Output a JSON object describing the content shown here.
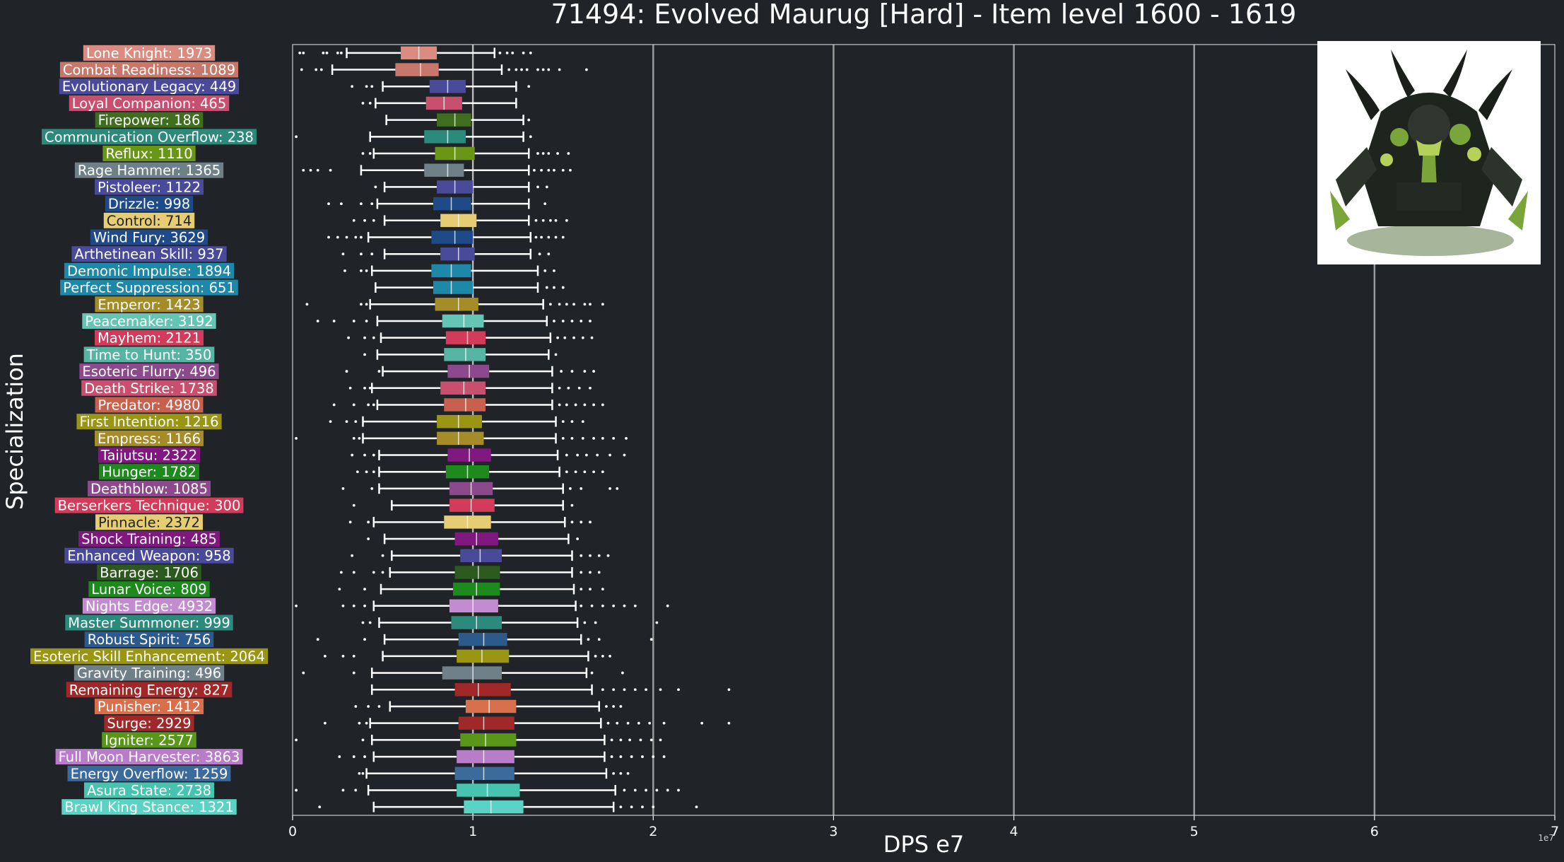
{
  "chart_data": {
    "type": "boxplot",
    "orientation": "horizontal",
    "title": "71494: Evolved Maurug [Hard] - Item level 1600 - 1619",
    "xlabel": "DPS e7",
    "ylabel": "Specialization",
    "xlim": [
      0,
      7
    ],
    "x_ticks": [
      "0",
      "1",
      "2",
      "3",
      "4",
      "5",
      "6",
      "7"
    ],
    "x_exponent_label": "1e7",
    "grid": "vertical",
    "median_reference_x": 1.0,
    "categories": [
      {
        "label": "Lone Knight: 1973",
        "color": "#d98c7f",
        "wl": 0.3,
        "q1": 0.6,
        "med": 0.7,
        "q3": 0.8,
        "wh": 1.12,
        "fliers": [
          0.04,
          0.06,
          0.17,
          0.19,
          0.25,
          0.27,
          1.15,
          1.19,
          1.22,
          1.28,
          1.32
        ]
      },
      {
        "label": "Combat Readiness: 1089",
        "color": "#c8786a",
        "wl": 0.22,
        "q1": 0.57,
        "med": 0.71,
        "q3": 0.81,
        "wh": 1.16,
        "fliers": [
          0.05,
          0.13,
          0.16,
          1.2,
          1.24,
          1.27,
          1.3,
          1.36,
          1.39,
          1.42,
          1.48,
          1.63
        ]
      },
      {
        "label": "Evolutionary Legacy: 449",
        "color": "#4a4a9a",
        "wl": 0.5,
        "q1": 0.76,
        "med": 0.86,
        "q3": 0.96,
        "wh": 1.24,
        "fliers": [
          0.33,
          0.41,
          0.44,
          1.31
        ]
      },
      {
        "label": "Loyal Companion: 465",
        "color": "#c8506e",
        "wl": 0.46,
        "q1": 0.74,
        "med": 0.84,
        "q3": 0.94,
        "wh": 1.24,
        "fliers": [
          0.39,
          0.43
        ]
      },
      {
        "label": "Firepower: 186",
        "color": "#3e6e1e",
        "wl": 0.52,
        "q1": 0.8,
        "med": 0.9,
        "q3": 0.99,
        "wh": 1.28,
        "fliers": [
          1.31
        ]
      },
      {
        "label": "Communication Overflow: 238",
        "color": "#2c8a7c",
        "wl": 0.43,
        "q1": 0.73,
        "med": 0.86,
        "q3": 0.96,
        "wh": 1.28,
        "fliers": [
          0.02,
          1.32
        ]
      },
      {
        "label": "Reflux: 1110",
        "color": "#6a9618",
        "wl": 0.45,
        "q1": 0.79,
        "med": 0.9,
        "q3": 1.01,
        "wh": 1.31,
        "fliers": [
          0.39,
          0.43,
          1.36,
          1.39,
          1.42,
          1.47,
          1.53
        ]
      },
      {
        "label": "Rage Hammer: 1365",
        "color": "#6f8088",
        "wl": 0.38,
        "q1": 0.73,
        "med": 0.86,
        "q3": 0.95,
        "wh": 1.31,
        "fliers": [
          0.06,
          0.1,
          0.14,
          0.21,
          1.34,
          1.38,
          1.42,
          1.45,
          1.5,
          1.54
        ]
      },
      {
        "label": "Pistoleer: 1122",
        "color": "#4a4a9a",
        "wl": 0.51,
        "q1": 0.8,
        "med": 0.9,
        "q3": 1.0,
        "wh": 1.31,
        "fliers": [
          0.46,
          1.36,
          1.41
        ]
      },
      {
        "label": "Drizzle: 998",
        "color": "#1e4a8a",
        "wl": 0.47,
        "q1": 0.78,
        "med": 0.88,
        "q3": 0.99,
        "wh": 1.31,
        "fliers": [
          0.2,
          0.27,
          0.38,
          0.44,
          1.4
        ]
      },
      {
        "label": "Control: 714",
        "color": "#e6cc72",
        "wl": 0.51,
        "q1": 0.82,
        "med": 0.92,
        "q3": 1.02,
        "wh": 1.31,
        "fliers": [
          0.34,
          0.4,
          0.45,
          1.35,
          1.39,
          1.43,
          1.46,
          1.52
        ]
      },
      {
        "label": "Wind Fury: 3629",
        "color": "#1e4a8a",
        "wl": 0.42,
        "q1": 0.77,
        "med": 0.9,
        "q3": 1.0,
        "wh": 1.32,
        "fliers": [
          0.2,
          0.25,
          0.3,
          0.35,
          0.38,
          1.35,
          1.38,
          1.42,
          1.46,
          1.5
        ]
      },
      {
        "label": "Arthetinean Skill: 937",
        "color": "#4a4a9a",
        "wl": 0.51,
        "q1": 0.82,
        "med": 0.92,
        "q3": 1.01,
        "wh": 1.32,
        "fliers": [
          0.28,
          0.38,
          0.44,
          1.37,
          1.42
        ]
      },
      {
        "label": "Demonic Impulse: 1894",
        "color": "#1e88a8",
        "wl": 0.44,
        "q1": 0.77,
        "med": 0.88,
        "q3": 0.99,
        "wh": 1.36,
        "fliers": [
          0.29,
          0.38,
          0.41,
          1.4,
          1.45
        ]
      },
      {
        "label": "Perfect Suppression: 651",
        "color": "#1e88a8",
        "wl": 0.46,
        "q1": 0.78,
        "med": 0.88,
        "q3": 1.0,
        "wh": 1.36,
        "fliers": [
          1.41,
          1.45,
          1.5
        ]
      },
      {
        "label": "Emperor: 1423",
        "color": "#a48c28",
        "wl": 0.43,
        "q1": 0.79,
        "med": 0.92,
        "q3": 1.03,
        "wh": 1.39,
        "fliers": [
          0.08,
          0.38,
          0.41,
          1.43,
          1.48,
          1.52,
          1.56,
          1.62,
          1.65,
          1.72
        ]
      },
      {
        "label": "Peacemaker: 3192",
        "color": "#66c4b4",
        "wl": 0.47,
        "q1": 0.83,
        "med": 0.95,
        "q3": 1.06,
        "wh": 1.41,
        "fliers": [
          0.14,
          0.23,
          0.34,
          0.41,
          1.45,
          1.5,
          1.55,
          1.6,
          1.65
        ]
      },
      {
        "label": "Mayhem: 2121",
        "color": "#d23c5a",
        "wl": 0.49,
        "q1": 0.85,
        "med": 0.97,
        "q3": 1.07,
        "wh": 1.43,
        "fliers": [
          0.31,
          0.4,
          0.45,
          1.47,
          1.51,
          1.56,
          1.61,
          1.66
        ]
      },
      {
        "label": "Time to Hunt: 350",
        "color": "#56b4a4",
        "wl": 0.47,
        "q1": 0.84,
        "med": 0.96,
        "q3": 1.07,
        "wh": 1.42,
        "fliers": [
          0.4,
          1.46
        ]
      },
      {
        "label": "Esoteric Flurry: 496",
        "color": "#8c4a8c",
        "wl": 0.5,
        "q1": 0.86,
        "med": 0.98,
        "q3": 1.09,
        "wh": 1.44,
        "fliers": [
          0.3,
          0.48,
          1.49,
          1.55,
          1.62,
          1.67
        ]
      },
      {
        "label": "Death Strike: 1738",
        "color": "#c8506e",
        "wl": 0.44,
        "q1": 0.82,
        "med": 0.95,
        "q3": 1.07,
        "wh": 1.44,
        "fliers": [
          0.32,
          0.4,
          0.43,
          1.48,
          1.53,
          1.59,
          1.65
        ]
      },
      {
        "label": "Predator: 4980",
        "color": "#c8604e",
        "wl": 0.47,
        "q1": 0.84,
        "med": 0.96,
        "q3": 1.07,
        "wh": 1.44,
        "fliers": [
          0.23,
          0.34,
          0.42,
          0.45,
          1.48,
          1.52,
          1.57,
          1.62,
          1.67,
          1.72
        ]
      },
      {
        "label": "First Intention: 1216",
        "color": "#9a9614",
        "wl": 0.39,
        "q1": 0.8,
        "med": 0.92,
        "q3": 1.05,
        "wh": 1.46,
        "fliers": [
          0.21,
          0.3,
          0.35,
          1.5,
          1.55,
          1.61
        ]
      },
      {
        "label": "Empress: 1166",
        "color": "#a48c28",
        "wl": 0.39,
        "q1": 0.8,
        "med": 0.92,
        "q3": 1.06,
        "wh": 1.46,
        "fliers": [
          0.02,
          0.34,
          0.37,
          1.5,
          1.55,
          1.61,
          1.67,
          1.72,
          1.78,
          1.85
        ]
      },
      {
        "label": "Taijutsu: 2322",
        "color": "#801880",
        "wl": 0.48,
        "q1": 0.86,
        "med": 0.98,
        "q3": 1.1,
        "wh": 1.47,
        "fliers": [
          0.33,
          0.4,
          0.45,
          1.52,
          1.58,
          1.63,
          1.69,
          1.76,
          1.84
        ]
      },
      {
        "label": "Hunger: 1782",
        "color": "#1e8a1e",
        "wl": 0.48,
        "q1": 0.85,
        "med": 0.97,
        "q3": 1.09,
        "wh": 1.48,
        "fliers": [
          0.36,
          0.41,
          0.45,
          1.52,
          1.57,
          1.62,
          1.67,
          1.72
        ]
      },
      {
        "label": "Deathblow: 1085",
        "color": "#8c4a8c",
        "wl": 0.48,
        "q1": 0.87,
        "med": 0.99,
        "q3": 1.11,
        "wh": 1.5,
        "fliers": [
          0.28,
          0.44,
          1.54,
          1.6,
          1.76,
          1.8
        ]
      },
      {
        "label": "Berserkers Technique: 300",
        "color": "#d23c5a",
        "wl": 0.55,
        "q1": 0.87,
        "med": 0.99,
        "q3": 1.12,
        "wh": 1.5,
        "fliers": [
          0.34,
          1.55
        ]
      },
      {
        "label": "Pinnacle: 2372",
        "color": "#e6cc72",
        "wl": 0.45,
        "q1": 0.84,
        "med": 0.97,
        "q3": 1.1,
        "wh": 1.51,
        "fliers": [
          0.32,
          0.42,
          1.55,
          1.6,
          1.65
        ]
      },
      {
        "label": "Shock Training: 485",
        "color": "#801880",
        "wl": 0.51,
        "q1": 0.9,
        "med": 1.02,
        "q3": 1.14,
        "wh": 1.53,
        "fliers": [
          0.42,
          1.58
        ]
      },
      {
        "label": "Enhanced Weapon: 958",
        "color": "#4a4a9a",
        "wl": 0.55,
        "q1": 0.93,
        "med": 1.04,
        "q3": 1.16,
        "wh": 1.55,
        "fliers": [
          0.33,
          0.5,
          1.6,
          1.65,
          1.7,
          1.75
        ]
      },
      {
        "label": "Barrage: 1706",
        "color": "#2c5a1e",
        "wl": 0.54,
        "q1": 0.9,
        "med": 1.03,
        "q3": 1.15,
        "wh": 1.55,
        "fliers": [
          0.27,
          0.34,
          0.45,
          0.5,
          1.6,
          1.65,
          1.7
        ]
      },
      {
        "label": "Lunar Voice: 809",
        "color": "#1e8a1e",
        "wl": 0.49,
        "q1": 0.89,
        "med": 1.02,
        "q3": 1.15,
        "wh": 1.56,
        "fliers": [
          0.26,
          0.4,
          1.6,
          1.65,
          1.72
        ]
      },
      {
        "label": "Nights Edge: 4932",
        "color": "#c48cd0",
        "wl": 0.45,
        "q1": 0.87,
        "med": 1.0,
        "q3": 1.14,
        "wh": 1.57,
        "fliers": [
          0.02,
          0.28,
          0.34,
          0.4,
          1.6,
          1.66,
          1.72,
          1.78,
          1.84,
          1.9,
          2.08
        ]
      },
      {
        "label": "Master Summoner: 999",
        "color": "#2c8a7c",
        "wl": 0.48,
        "q1": 0.88,
        "med": 1.02,
        "q3": 1.16,
        "wh": 1.58,
        "fliers": [
          0.39,
          0.43,
          1.62,
          1.68,
          2.02
        ]
      },
      {
        "label": "Robust Spirit: 756",
        "color": "#2c5a8c",
        "wl": 0.51,
        "q1": 0.92,
        "med": 1.06,
        "q3": 1.19,
        "wh": 1.6,
        "fliers": [
          0.14,
          0.4,
          1.64,
          1.7,
          1.99
        ]
      },
      {
        "label": "Esoteric Skill Enhancement: 2064",
        "color": "#9a9614",
        "wl": 0.5,
        "q1": 0.91,
        "med": 1.05,
        "q3": 1.2,
        "wh": 1.64,
        "fliers": [
          0.18,
          0.28,
          0.34,
          1.68,
          1.72,
          1.76
        ]
      },
      {
        "label": "Gravity Training: 496",
        "color": "#6f8088",
        "wl": 0.44,
        "q1": 0.83,
        "med": 1.0,
        "q3": 1.16,
        "wh": 1.63,
        "fliers": [
          0.06,
          0.34,
          1.66,
          1.83
        ]
      },
      {
        "label": "Remaining Energy: 827",
        "color": "#a02828",
        "wl": 0.44,
        "q1": 0.9,
        "med": 1.03,
        "q3": 1.21,
        "wh": 1.66,
        "fliers": [
          1.72,
          1.78,
          1.84,
          1.9,
          1.96,
          2.04,
          2.14,
          2.42
        ]
      },
      {
        "label": "Punisher: 1412",
        "color": "#d8704e",
        "wl": 0.54,
        "q1": 0.96,
        "med": 1.09,
        "q3": 1.24,
        "wh": 1.7,
        "fliers": [
          0.35,
          0.42,
          0.48,
          1.74,
          1.78,
          1.82
        ]
      },
      {
        "label": "Surge: 2929",
        "color": "#a02828",
        "wl": 0.43,
        "q1": 0.92,
        "med": 1.06,
        "q3": 1.23,
        "wh": 1.71,
        "fliers": [
          0.18,
          0.37,
          0.41,
          1.75,
          1.8,
          1.86,
          1.92,
          1.98,
          2.06,
          2.27,
          2.42
        ]
      },
      {
        "label": "Igniter: 2577",
        "color": "#5a9618",
        "wl": 0.44,
        "q1": 0.93,
        "med": 1.07,
        "q3": 1.24,
        "wh": 1.73,
        "fliers": [
          0.02,
          0.39,
          1.77,
          1.82,
          1.87,
          1.93,
          1.99,
          2.04
        ]
      },
      {
        "label": "Full Moon Harvester: 3863",
        "color": "#b87cc8",
        "wl": 0.45,
        "q1": 0.91,
        "med": 1.06,
        "q3": 1.23,
        "wh": 1.73,
        "fliers": [
          0.26,
          0.34,
          0.4,
          1.77,
          1.82,
          1.88,
          1.94,
          2.0,
          2.06
        ]
      },
      {
        "label": "Energy Overflow: 1259",
        "color": "#3c6a9a",
        "wl": 0.41,
        "q1": 0.9,
        "med": 1.06,
        "q3": 1.23,
        "wh": 1.74,
        "fliers": [
          0.37,
          0.39,
          1.78,
          1.82,
          1.86
        ]
      },
      {
        "label": "Asura State: 2738",
        "color": "#46c4b0",
        "wl": 0.42,
        "q1": 0.91,
        "med": 1.08,
        "q3": 1.26,
        "wh": 1.79,
        "fliers": [
          0.02,
          0.28,
          0.35,
          1.84,
          1.9,
          1.96,
          2.02,
          2.08,
          2.14
        ]
      },
      {
        "label": "Brawl King Stance: 1321",
        "color": "#5ad2c4",
        "wl": 0.45,
        "q1": 0.95,
        "med": 1.1,
        "q3": 1.28,
        "wh": 1.78,
        "fliers": [
          0.15,
          1.82,
          1.88,
          1.94,
          2.0,
          2.24
        ]
      }
    ]
  },
  "portrait": {
    "icon": "boss-portrait-icon",
    "colors": {
      "armor": "#1a1f1a",
      "slime": "#7aa53a",
      "glow": "#b4d25a"
    }
  }
}
